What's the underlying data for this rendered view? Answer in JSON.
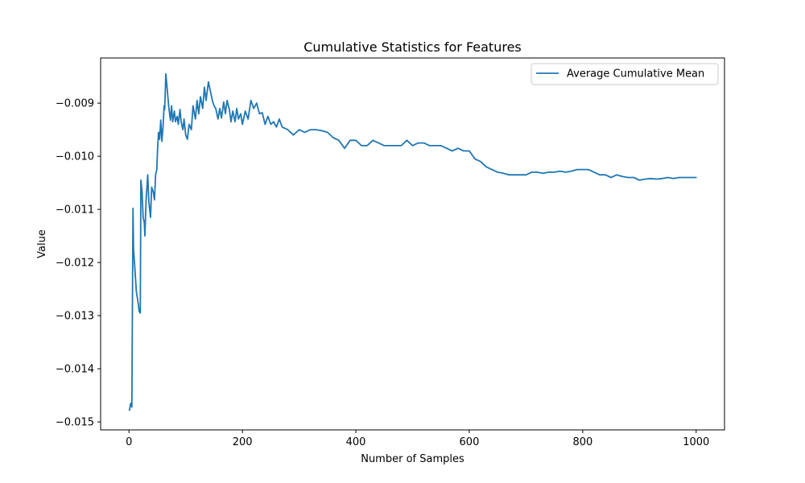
{
  "chart_data": {
    "type": "line",
    "title": "Cumulative Statistics for Features",
    "xlabel": "Number of Samples",
    "ylabel": "Value",
    "xlim": [
      -50,
      1050
    ],
    "ylim": [
      -0.01515,
      -0.00815
    ],
    "xticks": [
      0,
      200,
      400,
      600,
      800,
      1000
    ],
    "xtick_labels": [
      "0",
      "200",
      "400",
      "600",
      "800",
      "1000"
    ],
    "yticks": [
      -0.015,
      -0.014,
      -0.013,
      -0.012,
      -0.011,
      -0.01,
      -0.009
    ],
    "ytick_labels": [
      "−0.015",
      "−0.014",
      "−0.013",
      "−0.012",
      "−0.011",
      "−0.010",
      "−0.009"
    ],
    "grid": false,
    "legend_position": "top-right",
    "series": [
      {
        "name": "Average Cumulative Mean",
        "color": "#1f77b4",
        "x": [
          1,
          3,
          5,
          7,
          8,
          10,
          13,
          16,
          18,
          20,
          21,
          23,
          25,
          27,
          28,
          30,
          33,
          35,
          38,
          40,
          43,
          45,
          47,
          49,
          50,
          52,
          54,
          56,
          58,
          60,
          62,
          63,
          65,
          67,
          70,
          73,
          75,
          77,
          80,
          82,
          85,
          87,
          90,
          92,
          95,
          97,
          100,
          103,
          106,
          110,
          113,
          117,
          120,
          123,
          126,
          130,
          133,
          136,
          140,
          143,
          147,
          150,
          153,
          157,
          160,
          163,
          167,
          170,
          173,
          177,
          180,
          183,
          187,
          190,
          193,
          197,
          200,
          205,
          210,
          215,
          220,
          225,
          230,
          235,
          240,
          245,
          250,
          255,
          260,
          265,
          270,
          280,
          290,
          300,
          310,
          320,
          330,
          340,
          350,
          360,
          370,
          380,
          390,
          400,
          410,
          420,
          430,
          440,
          450,
          460,
          470,
          480,
          490,
          500,
          510,
          520,
          530,
          540,
          550,
          560,
          570,
          580,
          590,
          600,
          610,
          620,
          630,
          640,
          650,
          660,
          670,
          680,
          690,
          700,
          710,
          720,
          730,
          740,
          750,
          760,
          770,
          780,
          790,
          800,
          810,
          820,
          830,
          840,
          850,
          860,
          870,
          880,
          890,
          900,
          910,
          920,
          930,
          940,
          950,
          960,
          970,
          980,
          990,
          1000
        ],
        "values": [
          -0.01478,
          -0.01465,
          -0.01472,
          -0.01098,
          -0.01175,
          -0.01205,
          -0.01255,
          -0.01275,
          -0.01292,
          -0.01295,
          -0.01045,
          -0.01065,
          -0.01115,
          -0.01125,
          -0.0115,
          -0.01085,
          -0.01035,
          -0.01085,
          -0.01115,
          -0.01058,
          -0.01068,
          -0.01082,
          -0.01035,
          -0.01025,
          -0.00995,
          -0.00955,
          -0.00968,
          -0.00932,
          -0.00972,
          -0.00945,
          -0.00905,
          -0.00912,
          -0.00845,
          -0.00868,
          -0.00905,
          -0.00932,
          -0.00905,
          -0.00935,
          -0.00915,
          -0.00935,
          -0.00925,
          -0.0094,
          -0.00912,
          -0.00935,
          -0.0095,
          -0.0093,
          -0.0096,
          -0.00968,
          -0.0094,
          -0.0095,
          -0.00905,
          -0.0093,
          -0.00895,
          -0.0092,
          -0.00888,
          -0.0091,
          -0.0087,
          -0.00895,
          -0.0086,
          -0.00875,
          -0.00895,
          -0.00905,
          -0.0091,
          -0.0093,
          -0.0091,
          -0.00928,
          -0.00898,
          -0.0092,
          -0.00895,
          -0.00912,
          -0.00935,
          -0.00915,
          -0.00935,
          -0.0091,
          -0.0093,
          -0.0092,
          -0.0094,
          -0.00915,
          -0.0093,
          -0.00895,
          -0.0091,
          -0.009,
          -0.0092,
          -0.00918,
          -0.0094,
          -0.00925,
          -0.0094,
          -0.00935,
          -0.00945,
          -0.0093,
          -0.00945,
          -0.0095,
          -0.0096,
          -0.0095,
          -0.00955,
          -0.0095,
          -0.0095,
          -0.00952,
          -0.00955,
          -0.00965,
          -0.0097,
          -0.00985,
          -0.0097,
          -0.0097,
          -0.0098,
          -0.0098,
          -0.0097,
          -0.00975,
          -0.0098,
          -0.0098,
          -0.0098,
          -0.0098,
          -0.0097,
          -0.0098,
          -0.00975,
          -0.00975,
          -0.0098,
          -0.0098,
          -0.0098,
          -0.00985,
          -0.0099,
          -0.00985,
          -0.0099,
          -0.0099,
          -0.01005,
          -0.0101,
          -0.0102,
          -0.01025,
          -0.0103,
          -0.01032,
          -0.01035,
          -0.01035,
          -0.01035,
          -0.01035,
          -0.0103,
          -0.0103,
          -0.01032,
          -0.0103,
          -0.0103,
          -0.01028,
          -0.0103,
          -0.01028,
          -0.01025,
          -0.01025,
          -0.01025,
          -0.0103,
          -0.01035,
          -0.01035,
          -0.0104,
          -0.01035,
          -0.01038,
          -0.0104,
          -0.0104,
          -0.01045,
          -0.01043,
          -0.01042,
          -0.01043,
          -0.01042,
          -0.0104,
          -0.01042,
          -0.0104,
          -0.0104,
          -0.0104,
          -0.0104
        ]
      }
    ]
  }
}
